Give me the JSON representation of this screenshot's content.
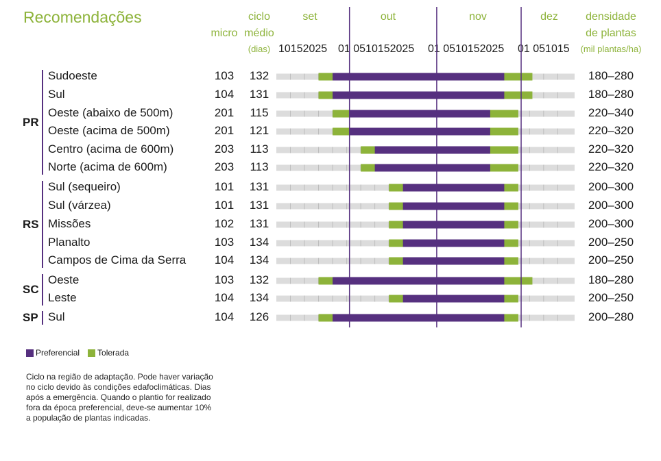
{
  "title": "Recomendações",
  "header": {
    "micro": "micro",
    "ciclo_line1": "ciclo",
    "ciclo_line2": "médio",
    "ciclo_line3": "(dias)",
    "density_line1": "densidade",
    "density_line2": "de plantas",
    "density_line3": "(mil plantas/ha)",
    "months": [
      "set",
      "out",
      "nov",
      "dez"
    ],
    "day_labels": [
      "10152025",
      "01 0510152025",
      "01 0510152025",
      "01 051015"
    ]
  },
  "colors": {
    "preferential": "#56307f",
    "tolerated": "#8db33a",
    "track": "#dcdcdc",
    "accent_green": "#8db33a"
  },
  "chart_data": {
    "type": "bar",
    "bar_kind": "gantt",
    "x_unit": "date",
    "xlim": [
      "2023-09-05",
      "2023-12-20"
    ],
    "legend_position": "bottom-left",
    "series": [
      {
        "name": "Preferencial",
        "color": "#56307f"
      },
      {
        "name": "Tolerada",
        "color": "#8db33a"
      }
    ],
    "groups": [
      {
        "state": "PR",
        "rows": [
          {
            "region": "Sudoeste",
            "micro": "103",
            "ciclo": "132",
            "tol_start": "2023-09-20",
            "pref_start": "2023-09-25",
            "pref_end": "2023-11-25",
            "tol_end": "2023-12-05",
            "density": "180-280"
          },
          {
            "region": "Sul",
            "micro": "104",
            "ciclo": "131",
            "tol_start": "2023-09-20",
            "pref_start": "2023-09-25",
            "pref_end": "2023-11-25",
            "tol_end": "2023-12-05",
            "density": "180-280"
          },
          {
            "region": "Oeste (abaixo de 500m)",
            "micro": "201",
            "ciclo": "115",
            "tol_start": "2023-09-25",
            "pref_start": "2023-10-01",
            "pref_end": "2023-11-20",
            "tol_end": "2023-11-30",
            "density": "220-340"
          },
          {
            "region": "Oeste (acima de 500m)",
            "micro": "201",
            "ciclo": "121",
            "tol_start": "2023-09-25",
            "pref_start": "2023-10-01",
            "pref_end": "2023-11-20",
            "tol_end": "2023-11-30",
            "density": "220-320"
          },
          {
            "region": "Centro (acima de 600m)",
            "micro": "203",
            "ciclo": "113",
            "tol_start": "2023-10-05",
            "pref_start": "2023-10-10",
            "pref_end": "2023-11-20",
            "tol_end": "2023-11-30",
            "density": "220-320"
          },
          {
            "region": "Norte (acima de 600m)",
            "micro": "203",
            "ciclo": "113",
            "tol_start": "2023-10-05",
            "pref_start": "2023-10-10",
            "pref_end": "2023-11-20",
            "tol_end": "2023-11-30",
            "density": "220-320"
          }
        ]
      },
      {
        "state": "RS",
        "rows": [
          {
            "region": "Sul (sequeiro)",
            "micro": "101",
            "ciclo": "131",
            "tol_start": "2023-10-15",
            "pref_start": "2023-10-20",
            "pref_end": "2023-11-25",
            "tol_end": "2023-11-30",
            "density": "200-300"
          },
          {
            "region": "Sul (várzea)",
            "micro": "101",
            "ciclo": "131",
            "tol_start": "2023-10-15",
            "pref_start": "2023-10-20",
            "pref_end": "2023-11-25",
            "tol_end": "2023-11-30",
            "density": "200-300"
          },
          {
            "region": "Missões",
            "micro": "102",
            "ciclo": "131",
            "tol_start": "2023-10-15",
            "pref_start": "2023-10-20",
            "pref_end": "2023-11-25",
            "tol_end": "2023-11-30",
            "density": "200-300"
          },
          {
            "region": "Planalto",
            "micro": "103",
            "ciclo": "134",
            "tol_start": "2023-10-15",
            "pref_start": "2023-10-20",
            "pref_end": "2023-11-25",
            "tol_end": "2023-11-30",
            "density": "200-250"
          },
          {
            "region": "Campos de Cima da Serra",
            "micro": "104",
            "ciclo": "134",
            "tol_start": "2023-10-15",
            "pref_start": "2023-10-20",
            "pref_end": "2023-11-25",
            "tol_end": "2023-11-30",
            "density": "200-250"
          }
        ]
      },
      {
        "state": "SC",
        "rows": [
          {
            "region": "Oeste",
            "micro": "103",
            "ciclo": "132",
            "tol_start": "2023-09-20",
            "pref_start": "2023-09-25",
            "pref_end": "2023-11-25",
            "tol_end": "2023-12-05",
            "density": "180-280"
          },
          {
            "region": "Leste",
            "micro": "104",
            "ciclo": "134",
            "tol_start": "2023-10-15",
            "pref_start": "2023-10-20",
            "pref_end": "2023-11-25",
            "tol_end": "2023-11-30",
            "density": "200-250"
          }
        ]
      },
      {
        "state": "SP",
        "rows": [
          {
            "region": "Sul",
            "micro": "104",
            "ciclo": "126",
            "tol_start": "2023-09-20",
            "pref_start": "2023-09-25",
            "pref_end": "2023-11-25",
            "tol_end": "2023-11-30",
            "density": "200-280"
          }
        ]
      }
    ],
    "month_boundaries": [
      "2023-10-01",
      "2023-11-01",
      "2023-12-01"
    ]
  },
  "legend": {
    "preferential": "Preferencial",
    "tolerated": "Tolerada"
  },
  "footnote": "Ciclo na região de adaptação. Pode haver variação no ciclo devido às condições edafoclimáticas. Dias após a emergência. Quando o plantio for realizado fora da época preferencial, deve-se aumentar 10% a população de plantas indicadas."
}
